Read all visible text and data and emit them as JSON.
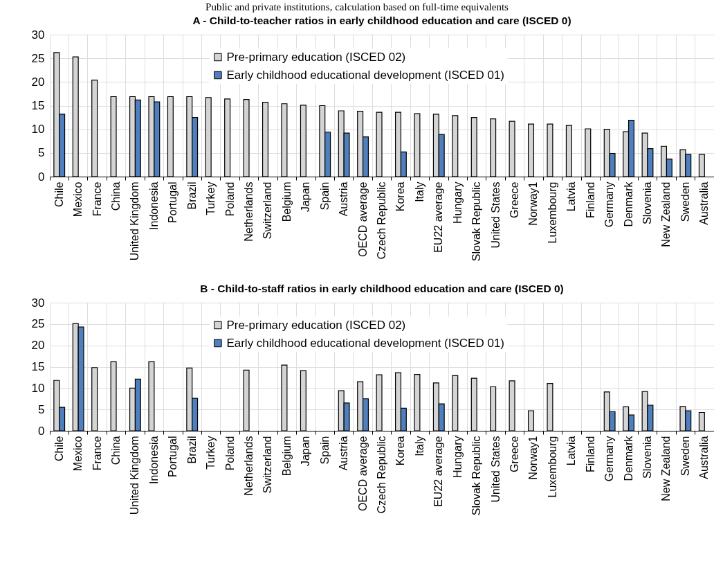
{
  "chart_data": [
    {
      "type": "bar",
      "subtitle": "Public and private institutions, calculation based on full-time equivalents",
      "title": "A - Child-to-teacher ratios in early childhood education and care (ISCED 0)",
      "categories": [
        "Chile",
        "Mexico",
        "France",
        "China",
        "United Kingdom",
        "Indonesia",
        "Portugal",
        "Brazil",
        "Turkey",
        "Poland",
        "Netherlands",
        "Switzerland",
        "Belgium",
        "Japan",
        "Spain",
        "Austria",
        "OECD average",
        "Czech Republic",
        "Korea",
        "Italy",
        "EU22 average",
        "Hungary",
        "Slovak Republic",
        "United States",
        "Greece",
        "Norway1",
        "Luxembourg",
        "Latvia",
        "Finland",
        "Germany",
        "Denmark",
        "Slovenia",
        "New Zealand",
        "Sweden",
        "Australia"
      ],
      "series": [
        {
          "name": "Pre-primary education (ISCED 02)",
          "color": "#d4d4d4",
          "values": [
            26.2,
            25.3,
            20.4,
            16.9,
            16.9,
            16.9,
            16.9,
            16.9,
            16.7,
            16.4,
            16.3,
            15.7,
            15.4,
            15.1,
            15.0,
            13.9,
            13.8,
            13.6,
            13.6,
            13.3,
            13.2,
            12.9,
            12.5,
            12.2,
            11.7,
            11.1,
            11.1,
            10.8,
            10.1,
            10.0,
            9.5,
            9.2,
            6.4,
            5.7,
            4.7
          ]
        },
        {
          "name": "Early childhood educational development (ISCED 01)",
          "color": "#4f7fbd",
          "values": [
            13.2,
            null,
            null,
            null,
            16.2,
            15.8,
            null,
            12.5,
            null,
            null,
            null,
            null,
            null,
            null,
            9.4,
            9.2,
            8.4,
            null,
            5.2,
            null,
            8.9,
            null,
            null,
            null,
            null,
            null,
            null,
            null,
            null,
            4.9,
            11.9,
            5.9,
            3.7,
            4.7,
            null
          ]
        }
      ],
      "ylim": [
        0,
        30
      ],
      "yticks": [
        0,
        5,
        10,
        15,
        20,
        25,
        30
      ],
      "grid": true,
      "legend": "top"
    },
    {
      "type": "bar",
      "title": "B - Child-to-staff ratios in early childhood education and care (ISCED 0)",
      "categories": [
        "Chile",
        "Mexico",
        "France",
        "China",
        "United Kingdom",
        "Indonesia",
        "Portugal",
        "Brazil",
        "Turkey",
        "Poland",
        "Netherlands",
        "Switzerland",
        "Belgium",
        "Japan",
        "Spain",
        "Austria",
        "OECD average",
        "Czech Republic",
        "Korea",
        "Italy",
        "EU22 average",
        "Hungary",
        "Slovak Republic",
        "United States",
        "Greece",
        "Norway1",
        "Luxembourg",
        "Latvia",
        "Finland",
        "Germany",
        "Denmark",
        "Slovenia",
        "New Zealand",
        "Sweden",
        "Australia"
      ],
      "series": [
        {
          "name": "Pre-primary education (ISCED 02)",
          "color": "#d4d4d4",
          "values": [
            11.8,
            25.1,
            14.8,
            16.2,
            10.0,
            16.2,
            null,
            14.7,
            null,
            null,
            14.2,
            null,
            15.4,
            14.1,
            null,
            9.4,
            11.5,
            13.1,
            13.6,
            13.2,
            11.2,
            12.9,
            12.3,
            10.3,
            11.7,
            4.7,
            11.1,
            null,
            null,
            9.1,
            5.6,
            9.2,
            null,
            5.7,
            4.3
          ]
        },
        {
          "name": "Early childhood educational development (ISCED 01)",
          "color": "#4f7fbd",
          "values": [
            5.5,
            24.3,
            null,
            null,
            12.1,
            null,
            null,
            7.6,
            null,
            null,
            null,
            null,
            null,
            null,
            null,
            6.5,
            7.5,
            null,
            5.3,
            null,
            6.3,
            null,
            null,
            null,
            null,
            null,
            null,
            null,
            null,
            4.5,
            3.7,
            6.0,
            null,
            4.7,
            null
          ]
        }
      ],
      "ylim": [
        0,
        30
      ],
      "yticks": [
        0,
        5,
        10,
        15,
        20,
        25,
        30
      ],
      "grid": true,
      "legend": "top"
    }
  ]
}
